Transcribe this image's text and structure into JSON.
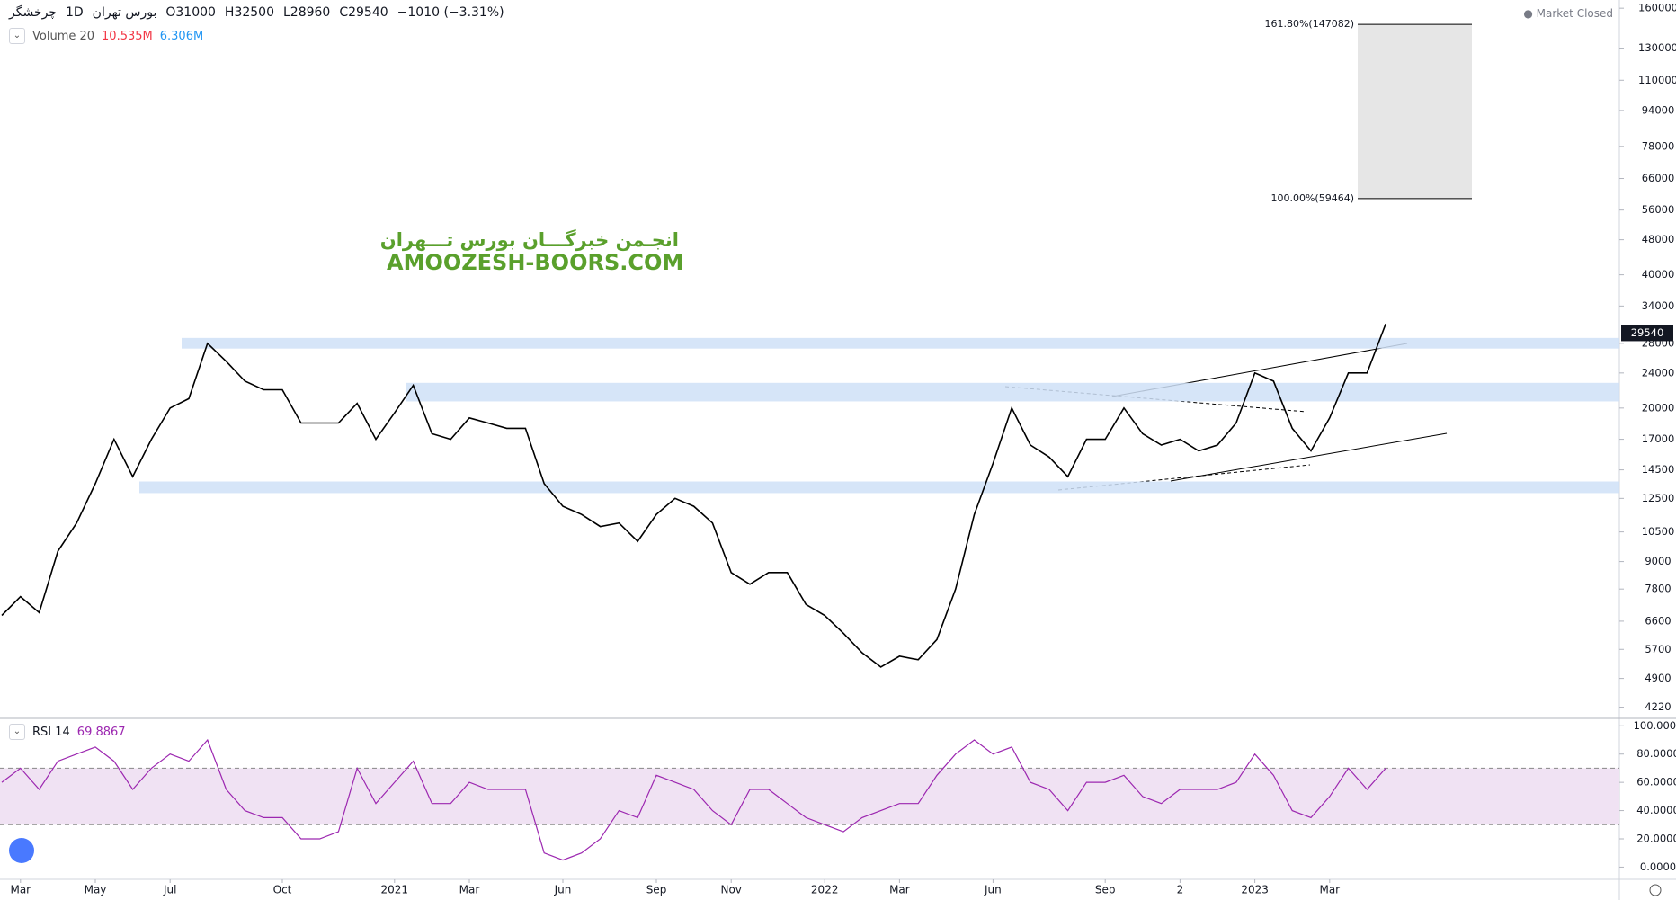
{
  "chart_data": [
    {
      "type": "line",
      "log": true,
      "series": [
        {
          "name": "چرخشگر",
          "color": "#000000",
          "values": [
            6800,
            7500,
            6900,
            9500,
            11000,
            13500,
            17000,
            14000,
            17000,
            20000,
            21000,
            28000,
            25500,
            23000,
            22000,
            22000,
            18500,
            18500,
            18500,
            20500,
            17000,
            19500,
            22500,
            17500,
            17000,
            19000,
            18500,
            18000,
            18000,
            13500,
            12000,
            11500,
            10800,
            11000,
            10000,
            11500,
            12500,
            12000,
            11000,
            8500,
            8000,
            8500,
            8500,
            7200,
            6800,
            6200,
            5600,
            5200,
            5500,
            5400,
            6000,
            7800,
            11500,
            15000,
            20000,
            16500,
            15500,
            14000,
            17000,
            17000,
            20000,
            17500,
            16500,
            17000,
            16000,
            16500,
            18500,
            24000,
            23000,
            18000,
            16000,
            19000,
            24000,
            24000,
            31000
          ]
        }
      ],
      "categories": [
        null,
        "Mar",
        null,
        null,
        null,
        "May",
        null,
        null,
        null,
        "Jul",
        null,
        null,
        null,
        null,
        null,
        "Oct",
        null,
        null,
        null,
        null,
        null,
        "2021",
        null,
        null,
        null,
        "Mar",
        null,
        null,
        null,
        null,
        "Jun",
        null,
        null,
        null,
        null,
        "Sep",
        null,
        null,
        null,
        "Nov",
        null,
        null,
        null,
        null,
        "2022",
        null,
        null,
        null,
        "Mar",
        null,
        null,
        null,
        null,
        "Jun",
        null,
        null,
        null,
        null,
        null,
        "Sep",
        null,
        null,
        null,
        "2",
        null,
        null,
        null,
        "2023",
        null,
        null,
        null,
        "Mar",
        null,
        null,
        null
      ],
      "ylim": [
        4000,
        167000
      ],
      "yticks": [
        160000,
        130000,
        110000,
        94000,
        78000,
        66000,
        56000,
        48000,
        40000,
        34000,
        28000,
        24000,
        20000,
        17000,
        14500,
        12500,
        10500,
        9000,
        7800,
        6600,
        5700,
        4900,
        4220
      ],
      "interval": "1D",
      "exchange": "بورس تهران",
      "ohlc": [
        "O31000",
        "H32500",
        "L28960",
        "C29540"
      ],
      "change": "−1010 (−3.31%)",
      "last_value": 29540,
      "last_color": "#131722",
      "status": "Market Closed",
      "volume_indicator": {
        "name": "Volume 20",
        "values": [
          "10.535M",
          "6.306M"
        ],
        "colors": [
          "#f23645",
          "#2196f3"
        ]
      },
      "zones": [
        [
          27250,
          28800
        ],
        [
          20700,
          22800
        ],
        [
          12850,
          13650
        ]
      ],
      "zone_color": "#cfe0f7",
      "fib_levels": [
        {
          "value": 147082,
          "label": "161.80%(147082)"
        },
        {
          "value": 59464,
          "label": "100.00%(59464)"
        }
      ],
      "watermark": [
        "انجـمن خبرگـــان بورس تـــهران",
        "AMOOZESH-BOORS.COM"
      ]
    },
    {
      "type": "line",
      "series": [
        {
          "name": "RSI 14",
          "color": "#9c27b0",
          "values": [
            60,
            70,
            55,
            75,
            80,
            85,
            75,
            55,
            70,
            80,
            75,
            90,
            55,
            40,
            35,
            35,
            20,
            20,
            25,
            70,
            45,
            60,
            75,
            45,
            45,
            60,
            55,
            55,
            55,
            10,
            5,
            10,
            20,
            40,
            35,
            65,
            60,
            55,
            40,
            30,
            55,
            55,
            45,
            35,
            30,
            25,
            35,
            40,
            45,
            45,
            65,
            80,
            90,
            80,
            85,
            60,
            55,
            40,
            60,
            60,
            65,
            50,
            45,
            55,
            55,
            55,
            60,
            80,
            65,
            40,
            35,
            50,
            70,
            55,
            70
          ]
        }
      ],
      "last_value": 69.8867,
      "ylim": [
        -8,
        104
      ],
      "yticks": [
        {
          "value": 100,
          "label": "100.0000"
        },
        {
          "value": 80,
          "label": "80.0000"
        },
        {
          "value": 60,
          "label": "60.0000"
        },
        {
          "value": 40,
          "label": "40.0000"
        },
        {
          "value": 20,
          "label": "20.0000"
        },
        {
          "value": 0,
          "label": "0.0000"
        }
      ],
      "band": [
        30,
        70
      ],
      "band_color": "#f0e2f3"
    }
  ]
}
